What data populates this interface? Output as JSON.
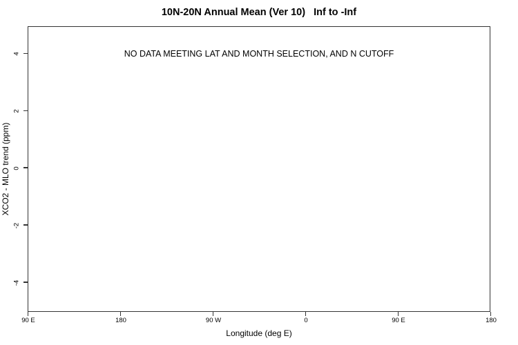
{
  "title": "10N-20N Annual Mean (Ver 10)   Inf to -Inf",
  "no_data_message": "NO DATA MEETING LAT AND MONTH SELECTION, AND N CUTOFF",
  "colors": {
    "background": "#ffffff",
    "axis_line": "#333333",
    "text": "#000000"
  },
  "chart_data": {
    "type": "scatter",
    "title": "10N-20N Annual Mean (Ver 10)   Inf to -Inf",
    "xlabel": "Longitude (deg E)",
    "ylabel": "XCO2 - MLO trend (ppm)",
    "annotation": "NO DATA MEETING LAT AND MONTH SELECTION, AND N CUTOFF",
    "annotation_y": 4,
    "series": [],
    "grid": false,
    "legend": null,
    "xlim": [
      90,
      540
    ],
    "ylim": [
      -5.05,
      4.95
    ],
    "x_ticks": [
      {
        "label": "90 E",
        "value": 90
      },
      {
        "label": "180",
        "value": 180
      },
      {
        "label": "90 W",
        "value": 270
      },
      {
        "label": "0",
        "value": 360
      },
      {
        "label": "90 E",
        "value": 450
      },
      {
        "label": "180",
        "value": 540
      }
    ],
    "y_ticks": [
      {
        "label": "-4",
        "value": -4
      },
      {
        "label": "-2",
        "value": -2
      },
      {
        "label": "0",
        "value": 0
      },
      {
        "label": "2",
        "value": 2
      },
      {
        "label": "4",
        "value": 4
      }
    ]
  }
}
